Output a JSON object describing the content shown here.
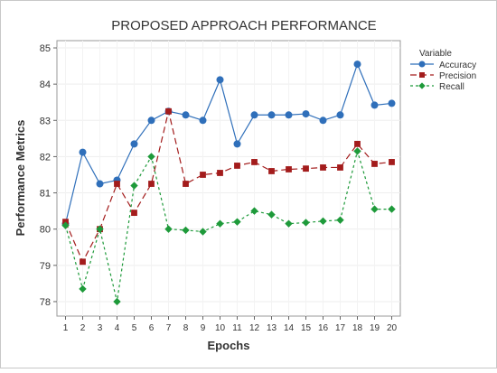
{
  "chart_data": {
    "type": "line",
    "title": "PROPOSED APPROACH PERFORMANCE",
    "xlabel": "Epochs",
    "ylabel": "Performance Metrics",
    "x": [
      1,
      2,
      3,
      4,
      5,
      6,
      7,
      8,
      9,
      10,
      11,
      12,
      13,
      14,
      15,
      16,
      17,
      18,
      19,
      20
    ],
    "xlim": [
      0.5,
      20.5
    ],
    "ylim": [
      77.6,
      85.2
    ],
    "yticks": [
      78,
      79,
      80,
      81,
      82,
      83,
      84,
      85
    ],
    "grid": true,
    "legend": {
      "title": "Variable",
      "position": "right"
    },
    "series": [
      {
        "name": "Accuracy",
        "color": "#2f6fba",
        "marker": "circle",
        "line": "solid",
        "values": [
          80.15,
          82.12,
          81.25,
          81.35,
          82.35,
          83.0,
          83.25,
          83.15,
          83.0,
          84.12,
          82.35,
          83.15,
          83.15,
          83.15,
          83.18,
          83.0,
          83.15,
          84.55,
          83.42,
          83.47
        ]
      },
      {
        "name": "Precision",
        "color": "#a31c1c",
        "marker": "square",
        "line": "dashed",
        "values": [
          80.2,
          79.1,
          80.0,
          81.25,
          80.45,
          81.25,
          83.25,
          81.25,
          81.5,
          81.55,
          81.75,
          81.85,
          81.6,
          81.65,
          81.67,
          81.7,
          81.7,
          82.35,
          81.8,
          81.85
        ]
      },
      {
        "name": "Recall",
        "color": "#1e9a3a",
        "marker": "diamond",
        "line": "dotted",
        "values": [
          80.1,
          78.35,
          80.0,
          78.0,
          81.2,
          82.0,
          80.0,
          79.97,
          79.93,
          80.15,
          80.2,
          80.5,
          80.4,
          80.15,
          80.18,
          80.22,
          80.25,
          82.15,
          80.55,
          80.55
        ]
      }
    ]
  }
}
